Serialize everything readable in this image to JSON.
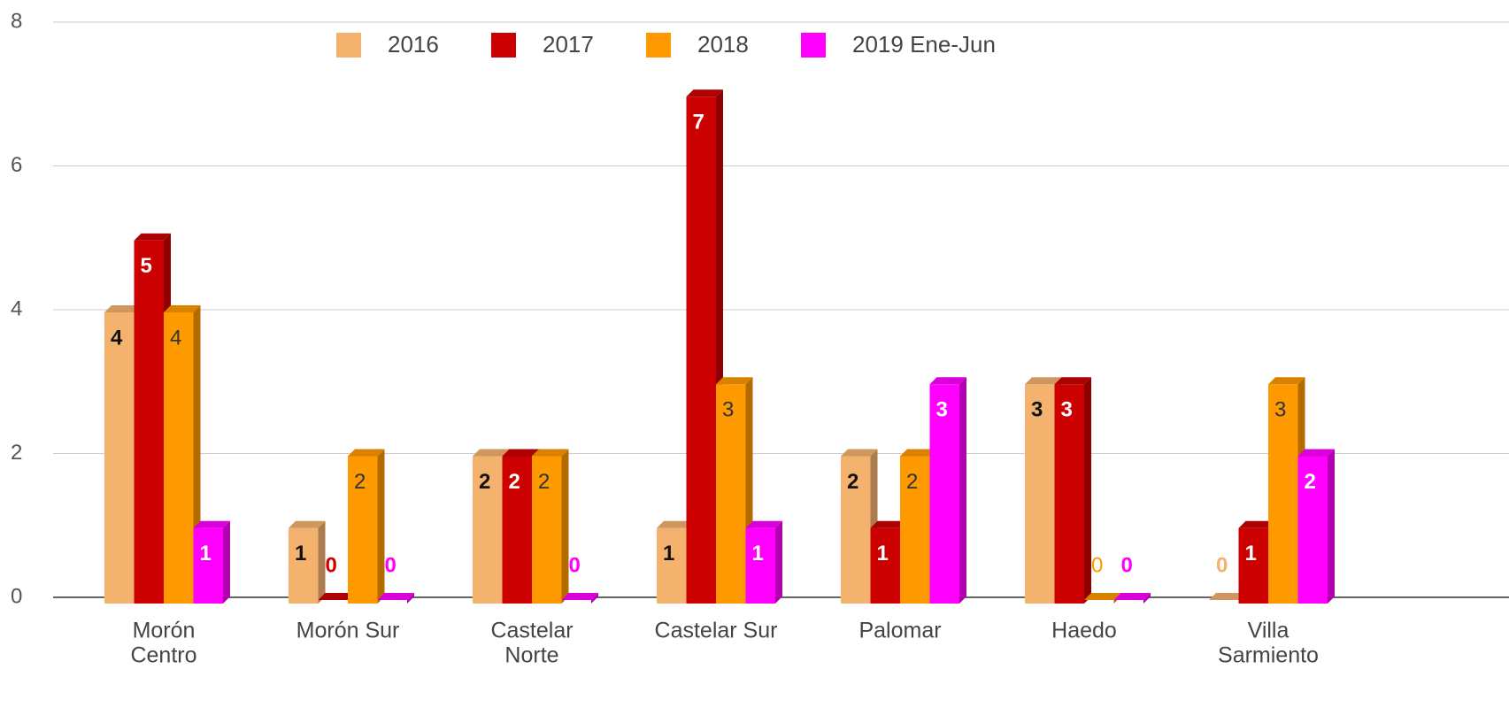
{
  "chart_data": {
    "type": "bar3d",
    "categories": [
      [
        "Morón",
        "Centro"
      ],
      [
        "Morón Sur"
      ],
      [
        "Castelar",
        "Norte"
      ],
      [
        "Castelar Sur"
      ],
      [
        "Palomar"
      ],
      [
        "Haedo"
      ],
      [
        "Villa",
        "Sarmiento"
      ]
    ],
    "series": [
      {
        "name": "2016",
        "color": "#f4b26f",
        "label_color": "#111111",
        "values": [
          4,
          1,
          2,
          1,
          2,
          3,
          0
        ]
      },
      {
        "name": "2017",
        "color": "#cc0000",
        "label_color": "#ffffff",
        "values": [
          5,
          0,
          2,
          7,
          1,
          3,
          1
        ]
      },
      {
        "name": "2018",
        "color": "#ff9900",
        "label_color": "#333333",
        "values": [
          4,
          2,
          2,
          3,
          2,
          0,
          3
        ]
      },
      {
        "name": "2019 Ene-Jun",
        "color": "#ff00ff",
        "label_color": "#ffffff",
        "values": [
          1,
          0,
          0,
          1,
          3,
          0,
          2
        ]
      }
    ],
    "ylim": [
      0,
      8
    ],
    "yticks": [
      0,
      2,
      4,
      6,
      8
    ],
    "grid": true,
    "legend": "top"
  }
}
